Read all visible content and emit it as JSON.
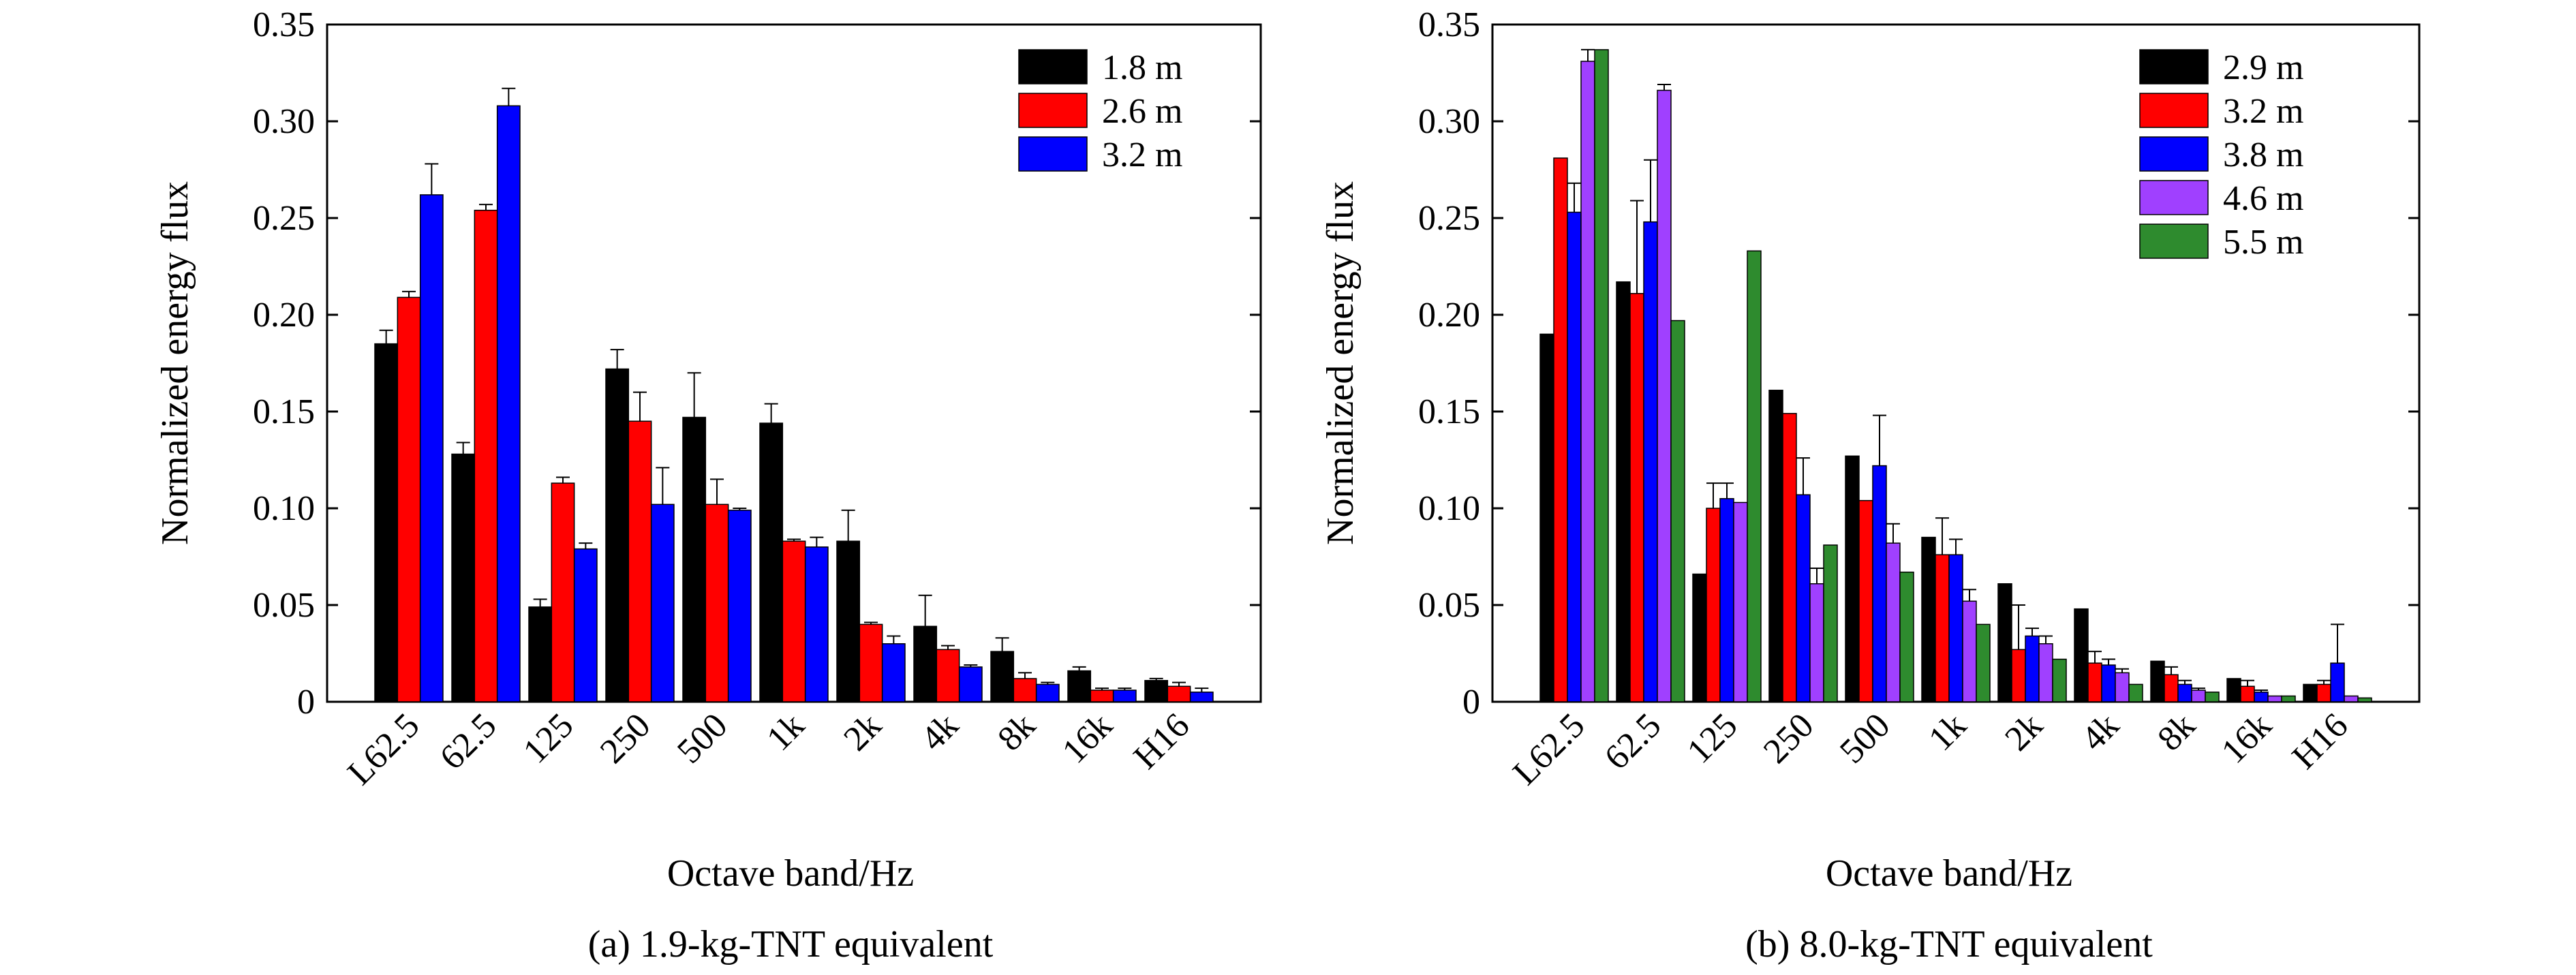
{
  "colors": {
    "1.8 m": "#000000",
    "2.6 m": "#ff0000",
    "3.2 m": "#0000ff",
    "2.9 m": "#000000",
    "3.8 m": "#0000ff",
    "4.6 m": "#a040ff",
    "5.5 m": "#2e8b2e"
  },
  "chart_data": [
    {
      "type": "bar",
      "caption": "(a) 1.9-kg-TNT equivalent",
      "xlabel": "Octave band/Hz",
      "ylabel": "Normalized energy flux",
      "ylim": [
        0,
        0.35
      ],
      "yticks": [
        "0",
        "0.05",
        "0.10",
        "0.15",
        "0.20",
        "0.25",
        "0.30",
        "0.35"
      ],
      "yticks_values": [
        0,
        0.05,
        0.1,
        0.15,
        0.2,
        0.25,
        0.3,
        0.35
      ],
      "categories": [
        "L62.5",
        "62.5",
        "125",
        "250",
        "500",
        "1k",
        "2k",
        "4k",
        "8k",
        "16k",
        "H16"
      ],
      "legend_position": "top-right",
      "error_bars": "upper",
      "series": [
        {
          "name": "1.8 m",
          "color": "#000000",
          "values": [
            0.185,
            0.128,
            0.049,
            0.172,
            0.147,
            0.144,
            0.083,
            0.039,
            0.026,
            0.016,
            0.011
          ],
          "errors": [
            0.007,
            0.006,
            0.004,
            0.01,
            0.023,
            0.01,
            0.016,
            0.016,
            0.007,
            0.002,
            0.001
          ]
        },
        {
          "name": "2.6 m",
          "color": "#ff0000",
          "values": [
            0.209,
            0.254,
            0.113,
            0.145,
            0.102,
            0.083,
            0.04,
            0.027,
            0.012,
            0.006,
            0.008
          ],
          "errors": [
            0.003,
            0.003,
            0.003,
            0.015,
            0.013,
            0.001,
            0.001,
            0.002,
            0.003,
            0.001,
            0.002
          ]
        },
        {
          "name": "3.2 m",
          "color": "#0000ff",
          "values": [
            0.262,
            0.308,
            0.079,
            0.102,
            0.099,
            0.08,
            0.03,
            0.018,
            0.009,
            0.006,
            0.005
          ],
          "errors": [
            0.016,
            0.009,
            0.003,
            0.019,
            0.001,
            0.005,
            0.004,
            0.001,
            0.001,
            0.001,
            0.002
          ]
        }
      ]
    },
    {
      "type": "bar",
      "caption": "(b) 8.0-kg-TNT equivalent",
      "xlabel": "Octave band/Hz",
      "ylabel": "Normalized energy flux",
      "ylim": [
        0,
        0.35
      ],
      "yticks": [
        "0",
        "0.05",
        "0.10",
        "0.15",
        "0.20",
        "0.25",
        "0.30",
        "0.35"
      ],
      "yticks_values": [
        0,
        0.05,
        0.1,
        0.15,
        0.2,
        0.25,
        0.3,
        0.35
      ],
      "categories": [
        "L62.5",
        "62.5",
        "125",
        "250",
        "500",
        "1k",
        "2k",
        "4k",
        "8k",
        "16k",
        "H16"
      ],
      "legend_position": "top-right",
      "error_bars": "upper",
      "series": [
        {
          "name": "2.9 m",
          "color": "#000000",
          "values": [
            0.19,
            0.217,
            0.066,
            0.161,
            0.127,
            0.085,
            0.061,
            0.048,
            0.021,
            0.012,
            0.009
          ],
          "errors": [
            0,
            0,
            0,
            0,
            0,
            0,
            0,
            0,
            0,
            0,
            0
          ]
        },
        {
          "name": "3.2 m",
          "color": "#ff0000",
          "values": [
            0.281,
            0.211,
            0.1,
            0.149,
            0.104,
            0.076,
            0.027,
            0.02,
            0.014,
            0.008,
            0.009
          ],
          "errors": [
            0,
            0.048,
            0.013,
            0,
            0,
            0.019,
            0.023,
            0.006,
            0.004,
            0.003,
            0.002
          ]
        },
        {
          "name": "3.8 m",
          "color": "#0000ff",
          "values": [
            0.253,
            0.248,
            0.105,
            0.107,
            0.122,
            0.076,
            0.034,
            0.019,
            0.009,
            0.005,
            0.02
          ],
          "errors": [
            0.015,
            0.032,
            0.008,
            0.019,
            0.026,
            0.008,
            0.004,
            0.003,
            0.002,
            0.001,
            0.02
          ]
        },
        {
          "name": "4.6 m",
          "color": "#a040ff",
          "values": [
            0.331,
            0.316,
            0.103,
            0.061,
            0.082,
            0.052,
            0.03,
            0.015,
            0.006,
            0.003,
            0.003
          ],
          "errors": [
            0.006,
            0.003,
            0,
            0.008,
            0.01,
            0.006,
            0.004,
            0.002,
            0.001,
            0,
            0
          ]
        },
        {
          "name": "5.5 m",
          "color": "#2e8b2e",
          "values": [
            0.337,
            0.197,
            0.233,
            0.081,
            0.067,
            0.04,
            0.022,
            0.009,
            0.005,
            0.003,
            0.002
          ],
          "errors": [
            0,
            0,
            0,
            0,
            0,
            0,
            0,
            0,
            0,
            0,
            0
          ]
        }
      ]
    }
  ]
}
